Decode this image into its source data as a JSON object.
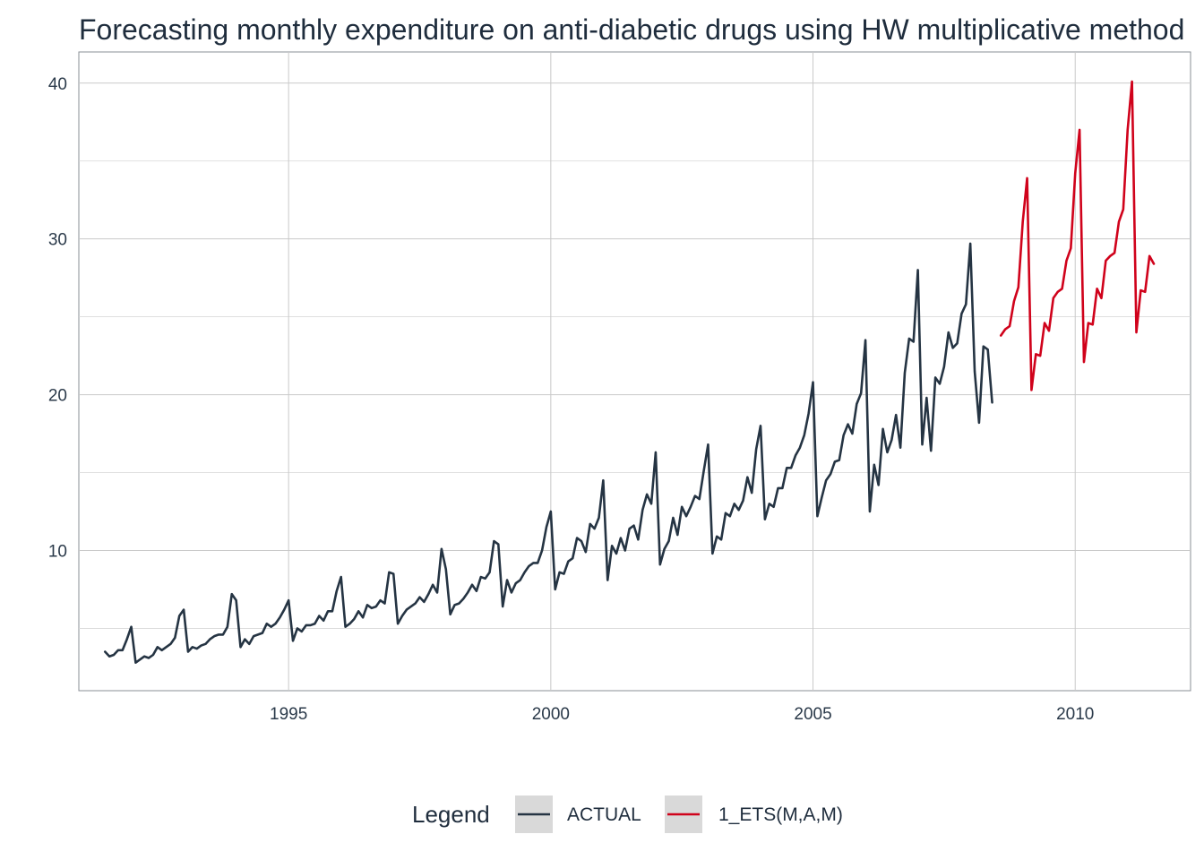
{
  "chart_data": {
    "type": "line",
    "title": "Forecasting monthly expenditure on anti-diabetic drugs using HW multiplicative method",
    "xlabel": "",
    "ylabel": "",
    "xlim": [
      1991.0,
      2012.2
    ],
    "ylim": [
      1.0,
      42.0
    ],
    "x_ticks": [
      1995,
      2000,
      2005,
      2010
    ],
    "x_tick_labels": [
      "1995",
      "2000",
      "2005",
      "2010"
    ],
    "y_ticks": [
      10,
      20,
      30,
      40
    ],
    "y_tick_labels": [
      "10",
      "20",
      "30",
      "40"
    ],
    "grid": true,
    "legend": {
      "title": "Legend",
      "position": "bottom"
    },
    "series": [
      {
        "name": "ACTUAL",
        "color": "#253443",
        "x_start": 1991.5,
        "x_step": 0.08333333,
        "values": [
          3.5,
          3.2,
          3.3,
          3.6,
          3.6,
          4.3,
          5.1,
          2.8,
          3.0,
          3.2,
          3.1,
          3.3,
          3.8,
          3.6,
          3.8,
          4.0,
          4.4,
          5.8,
          6.2,
          3.5,
          3.8,
          3.7,
          3.9,
          4.0,
          4.3,
          4.5,
          4.6,
          4.6,
          5.1,
          7.2,
          6.8,
          3.8,
          4.3,
          4.0,
          4.5,
          4.6,
          4.7,
          5.3,
          5.1,
          5.3,
          5.7,
          6.2,
          6.8,
          4.2,
          5.0,
          4.8,
          5.2,
          5.2,
          5.3,
          5.8,
          5.5,
          6.1,
          6.1,
          7.4,
          8.3,
          5.1,
          5.3,
          5.6,
          6.1,
          5.7,
          6.5,
          6.3,
          6.4,
          6.8,
          6.6,
          8.6,
          8.5,
          5.3,
          5.8,
          6.2,
          6.4,
          6.6,
          7.0,
          6.7,
          7.2,
          7.8,
          7.3,
          10.1,
          8.8,
          5.9,
          6.5,
          6.6,
          6.9,
          7.3,
          7.8,
          7.4,
          8.3,
          8.2,
          8.6,
          10.6,
          10.4,
          6.4,
          8.1,
          7.3,
          7.9,
          8.1,
          8.6,
          9.0,
          9.2,
          9.2,
          10.0,
          11.5,
          12.5,
          7.5,
          8.6,
          8.5,
          9.3,
          9.5,
          10.8,
          10.6,
          9.9,
          11.7,
          11.4,
          12.1,
          14.5,
          8.1,
          10.3,
          9.8,
          10.8,
          10.0,
          11.4,
          11.6,
          10.7,
          12.6,
          13.6,
          13.0,
          16.3,
          9.1,
          10.1,
          10.6,
          12.1,
          11.0,
          12.8,
          12.2,
          12.8,
          13.5,
          13.3,
          15.1,
          16.8,
          9.8,
          10.9,
          10.7,
          12.4,
          12.2,
          13.0,
          12.6,
          13.2,
          14.7,
          13.7,
          16.5,
          18.0,
          12.0,
          13.0,
          12.8,
          14.0,
          14.0,
          15.3,
          15.3,
          16.1,
          16.6,
          17.4,
          18.8,
          20.8,
          12.2,
          13.4,
          14.5,
          14.9,
          15.7,
          15.8,
          17.4,
          18.1,
          17.5,
          19.4,
          20.1,
          23.5,
          12.5,
          15.5,
          14.2,
          17.8,
          16.3,
          17.1,
          18.7,
          16.6,
          21.4,
          23.6,
          23.4,
          28.0,
          16.8,
          19.8,
          16.4,
          21.1,
          20.7,
          21.8,
          24.0,
          23.0,
          23.3,
          25.2,
          25.8,
          29.7,
          21.5,
          18.2,
          23.1,
          22.9,
          19.5
        ]
      },
      {
        "name": "1_ETS(M,A,M)",
        "color": "#d0021b",
        "x_start": 2008.5833,
        "x_step": 0.08333333,
        "values": [
          23.8,
          24.2,
          24.4,
          26.0,
          26.9,
          31.1,
          33.9,
          20.3,
          22.6,
          22.5,
          24.6,
          24.1,
          26.2,
          26.6,
          26.8,
          28.6,
          29.4,
          34.2,
          37.0,
          22.1,
          24.6,
          24.5,
          26.8,
          26.2,
          28.6,
          28.9,
          29.1,
          31.1,
          31.9,
          37.0,
          40.1,
          24.0,
          26.7,
          26.6,
          28.9,
          28.4
        ]
      }
    ]
  }
}
